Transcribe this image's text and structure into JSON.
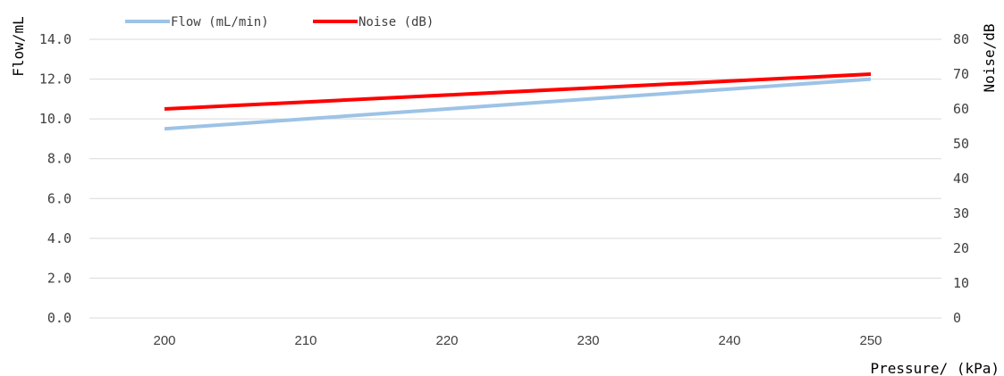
{
  "chart_data": {
    "type": "line",
    "title": "",
    "x": [
      200,
      210,
      220,
      230,
      240,
      250
    ],
    "xlabel": "Pressure/ (kPa)",
    "ylabel_left": "Flow/mL",
    "ylabel_right": "Noise/dB",
    "y_left_range": [
      0,
      14
    ],
    "y_right_range": [
      0,
      80
    ],
    "y_left_ticks": [
      "0.0",
      "2.0",
      "4.0",
      "6.0",
      "8.0",
      "10.0",
      "12.0",
      "14.0"
    ],
    "y_right_ticks": [
      "0",
      "10",
      "20",
      "30",
      "40",
      "50",
      "60",
      "70",
      "80"
    ],
    "x_ticks": [
      "200",
      "210",
      "220",
      "230",
      "240",
      "250"
    ],
    "grid": true,
    "legend_position": "top-left",
    "series": [
      {
        "name": "Flow (mL/min)",
        "axis": "left",
        "color": "#9dc3e6",
        "values": [
          9.5,
          10.0,
          10.5,
          11.0,
          11.5,
          12.0
        ]
      },
      {
        "name": "Noise (dB)",
        "axis": "right",
        "color": "#ff0000",
        "values": [
          60,
          62,
          64,
          66,
          68,
          70
        ]
      }
    ]
  }
}
